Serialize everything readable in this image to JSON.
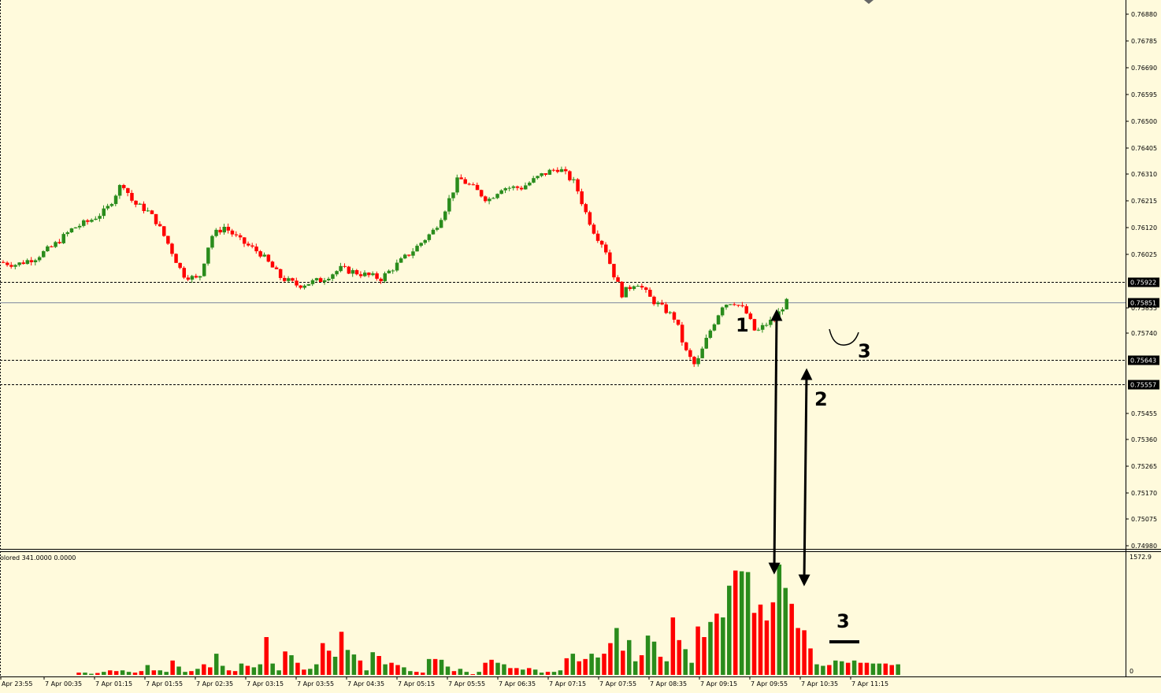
{
  "indicator_label": "olored 341.0000 0.0000",
  "price_axis": [
    "0.76880",
    "0.76785",
    "0.76690",
    "0.76595",
    "0.76500",
    "0.76405",
    "0.76310",
    "0.76215",
    "0.76120",
    "0.76025",
    "0.75835",
    "0.75740",
    "0.75455",
    "0.75360",
    "0.75265",
    "0.75170",
    "0.75075",
    "0.74980"
  ],
  "price_markers": [
    {
      "label": "0.75922",
      "kind": "dashed"
    },
    {
      "label": "0.75851",
      "kind": "solid"
    },
    {
      "label": "0.75643",
      "kind": "dashed"
    },
    {
      "label": "0.75557",
      "kind": "dashed"
    }
  ],
  "volume_axis": {
    "top": "1572.9",
    "bottom": "0"
  },
  "time_axis": [
    "Apr 23:55",
    "7 Apr 00:35",
    "7 Apr 01:15",
    "7 Apr 01:55",
    "7 Apr 02:35",
    "7 Apr 03:15",
    "7 Apr 03:55",
    "7 Apr 04:35",
    "7 Apr 05:15",
    "7 Apr 05:55",
    "7 Apr 06:35",
    "7 Apr 07:15",
    "7 Apr 07:55",
    "7 Apr 08:35",
    "7 Apr 09:15",
    "7 Apr 09:55",
    "7 Apr 10:35",
    "7 Apr 11:15"
  ],
  "annotations": {
    "a1": "1",
    "a2": "2",
    "a3_price": "3",
    "a3_volume": "3"
  },
  "colors": {
    "up": "#2a8c1c",
    "down": "#ff0000",
    "background": "#fffadc",
    "grid_line": "#000000"
  },
  "chart_data": {
    "type": "candlestick",
    "price_scale": {
      "min": 0.7498,
      "max": 0.7688
    },
    "volume_scale": {
      "min": 0,
      "max": 1572.9
    },
    "volume_series": [
      0,
      0,
      0,
      0,
      0,
      0,
      0,
      0,
      0,
      0,
      0,
      0,
      30,
      30,
      15,
      25,
      40,
      60,
      50,
      60,
      40,
      30,
      50,
      130,
      60,
      60,
      40,
      190,
      110,
      40,
      50,
      80,
      140,
      100,
      280,
      120,
      60,
      50,
      150,
      120,
      100,
      140,
      500,
      150,
      60,
      310,
      260,
      160,
      70,
      80,
      140,
      420,
      320,
      240,
      570,
      330,
      270,
      190,
      60,
      300,
      250,
      140,
      160,
      130,
      100,
      50,
      40,
      30,
      210,
      210,
      200,
      110,
      50,
      80,
      40,
      10,
      40,
      160,
      200,
      160,
      140,
      90,
      90,
      70,
      90,
      70,
      30,
      40,
      40,
      60,
      220,
      280,
      180,
      210,
      280,
      230,
      280,
      420,
      620,
      320,
      460,
      180,
      260,
      520,
      440,
      240,
      180,
      760,
      460,
      340,
      160,
      640,
      500,
      700,
      810,
      760,
      1180,
      1380,
      1370,
      1360,
      820,
      930,
      720,
      960,
      1460,
      1150,
      940,
      620,
      590,
      350,
      140,
      120,
      130,
      190,
      180,
      160,
      190,
      160,
      160,
      150,
      150,
      150,
      130,
      140
    ]
  }
}
